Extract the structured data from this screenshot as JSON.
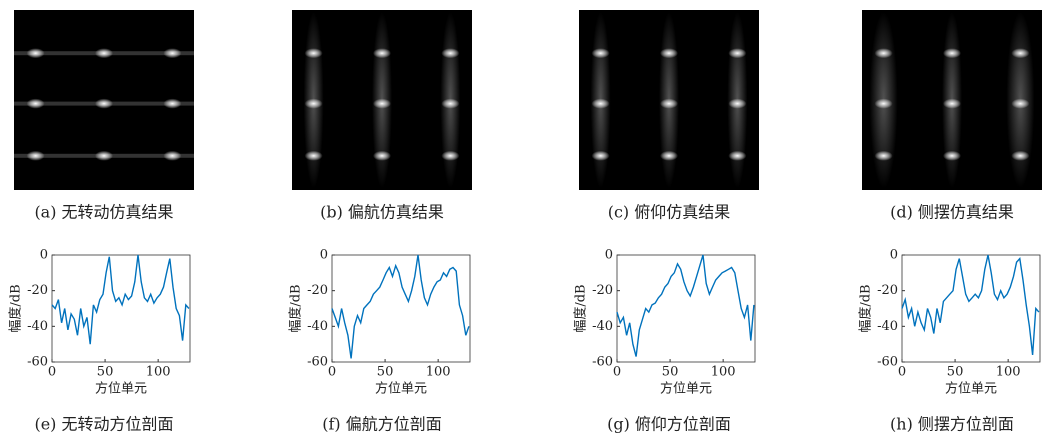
{
  "images": [
    {
      "caption": "(a) 无转动仿真结果"
    },
    {
      "caption": "(b) 偏航仿真结果"
    },
    {
      "caption": "(c) 俯仰仿真结果"
    },
    {
      "caption": "(d) 侧摆仿真结果"
    }
  ],
  "chart_data": [
    {
      "type": "line",
      "caption": "(e) 无转动方位剖面",
      "x_label": "方位单元",
      "y_label": "幅度/dB",
      "color": "#0072bd",
      "xlim": [
        0,
        130
      ],
      "xticks": [
        0,
        50,
        100
      ],
      "ylim": [
        -60,
        0
      ],
      "yticks": [
        -60,
        -40,
        -20,
        0
      ],
      "x": [
        0,
        3,
        6,
        9,
        12,
        15,
        18,
        21,
        24,
        27,
        30,
        33,
        36,
        39,
        42,
        45,
        48,
        51,
        54,
        57,
        60,
        63,
        66,
        69,
        72,
        75,
        78,
        81,
        84,
        87,
        90,
        93,
        96,
        99,
        102,
        105,
        108,
        111,
        114,
        117,
        120,
        123,
        126,
        129
      ],
      "values": [
        -28,
        -30,
        -25,
        -38,
        -30,
        -42,
        -33,
        -36,
        -45,
        -30,
        -40,
        -35,
        -50,
        -28,
        -32,
        -25,
        -22,
        -10,
        -1,
        -20,
        -26,
        -24,
        -28,
        -22,
        -25,
        -23,
        -15,
        0,
        -15,
        -24,
        -26,
        -22,
        -27,
        -24,
        -22,
        -18,
        -10,
        -2,
        -18,
        -30,
        -34,
        -48,
        -28,
        -30
      ]
    },
    {
      "type": "line",
      "caption": "(f) 偏航方位剖面",
      "x_label": "方位单元",
      "y_label": "幅度/dB",
      "color": "#0072bd",
      "xlim": [
        0,
        130
      ],
      "xticks": [
        0,
        50,
        100
      ],
      "ylim": [
        -60,
        0
      ],
      "yticks": [
        -60,
        -40,
        -20,
        0
      ],
      "x": [
        0,
        3,
        6,
        9,
        12,
        15,
        18,
        21,
        24,
        27,
        30,
        33,
        36,
        39,
        42,
        45,
        48,
        51,
        54,
        57,
        60,
        63,
        66,
        69,
        72,
        75,
        78,
        81,
        84,
        87,
        90,
        93,
        96,
        99,
        102,
        105,
        108,
        111,
        114,
        117,
        120,
        123,
        126,
        129
      ],
      "values": [
        -30,
        -35,
        -40,
        -30,
        -38,
        -45,
        -58,
        -40,
        -34,
        -38,
        -30,
        -28,
        -26,
        -22,
        -20,
        -18,
        -14,
        -10,
        -7,
        -12,
        -6,
        -10,
        -18,
        -22,
        -26,
        -20,
        -12,
        0,
        -14,
        -24,
        -28,
        -22,
        -18,
        -15,
        -14,
        -10,
        -12,
        -8,
        -7,
        -9,
        -28,
        -34,
        -45,
        -40
      ]
    },
    {
      "type": "line",
      "caption": "(g) 俯仰方位剖面",
      "x_label": "方位单元",
      "y_label": "幅度/dB",
      "color": "#0072bd",
      "xlim": [
        0,
        130
      ],
      "xticks": [
        0,
        50,
        100
      ],
      "ylim": [
        -60,
        0
      ],
      "yticks": [
        -60,
        -40,
        -20,
        0
      ],
      "x": [
        0,
        3,
        6,
        9,
        12,
        15,
        18,
        21,
        24,
        27,
        30,
        33,
        36,
        39,
        42,
        45,
        48,
        51,
        54,
        57,
        60,
        63,
        66,
        69,
        72,
        75,
        78,
        81,
        84,
        87,
        90,
        93,
        96,
        99,
        102,
        105,
        108,
        111,
        114,
        117,
        120,
        123,
        126,
        129
      ],
      "values": [
        -32,
        -38,
        -35,
        -45,
        -38,
        -50,
        -57,
        -42,
        -36,
        -30,
        -32,
        -28,
        -27,
        -24,
        -22,
        -18,
        -16,
        -12,
        -10,
        -5,
        -8,
        -15,
        -20,
        -23,
        -18,
        -12,
        -6,
        0,
        -16,
        -22,
        -18,
        -14,
        -12,
        -10,
        -9,
        -8,
        -7,
        -10,
        -20,
        -30,
        -35,
        -28,
        -48,
        -28
      ]
    },
    {
      "type": "line",
      "caption": "(h) 侧摆方位剖面",
      "x_label": "方位单元",
      "y_label": "幅度/dB",
      "color": "#0072bd",
      "xlim": [
        0,
        130
      ],
      "xticks": [
        0,
        50,
        100
      ],
      "ylim": [
        -60,
        0
      ],
      "yticks": [
        -60,
        -40,
        -20,
        0
      ],
      "x": [
        0,
        3,
        6,
        9,
        12,
        15,
        18,
        21,
        24,
        27,
        30,
        33,
        36,
        39,
        42,
        45,
        48,
        51,
        54,
        57,
        60,
        63,
        66,
        69,
        72,
        75,
        78,
        81,
        84,
        87,
        90,
        93,
        96,
        99,
        102,
        105,
        108,
        111,
        114,
        117,
        120,
        123,
        126,
        129
      ],
      "values": [
        -30,
        -25,
        -35,
        -30,
        -40,
        -32,
        -38,
        -42,
        -30,
        -35,
        -44,
        -30,
        -38,
        -26,
        -24,
        -22,
        -20,
        -8,
        -2,
        -12,
        -22,
        -26,
        -24,
        -22,
        -24,
        -20,
        -8,
        0,
        -10,
        -22,
        -25,
        -20,
        -24,
        -22,
        -18,
        -12,
        -4,
        -2,
        -14,
        -28,
        -40,
        -56,
        -30,
        -32
      ]
    }
  ]
}
